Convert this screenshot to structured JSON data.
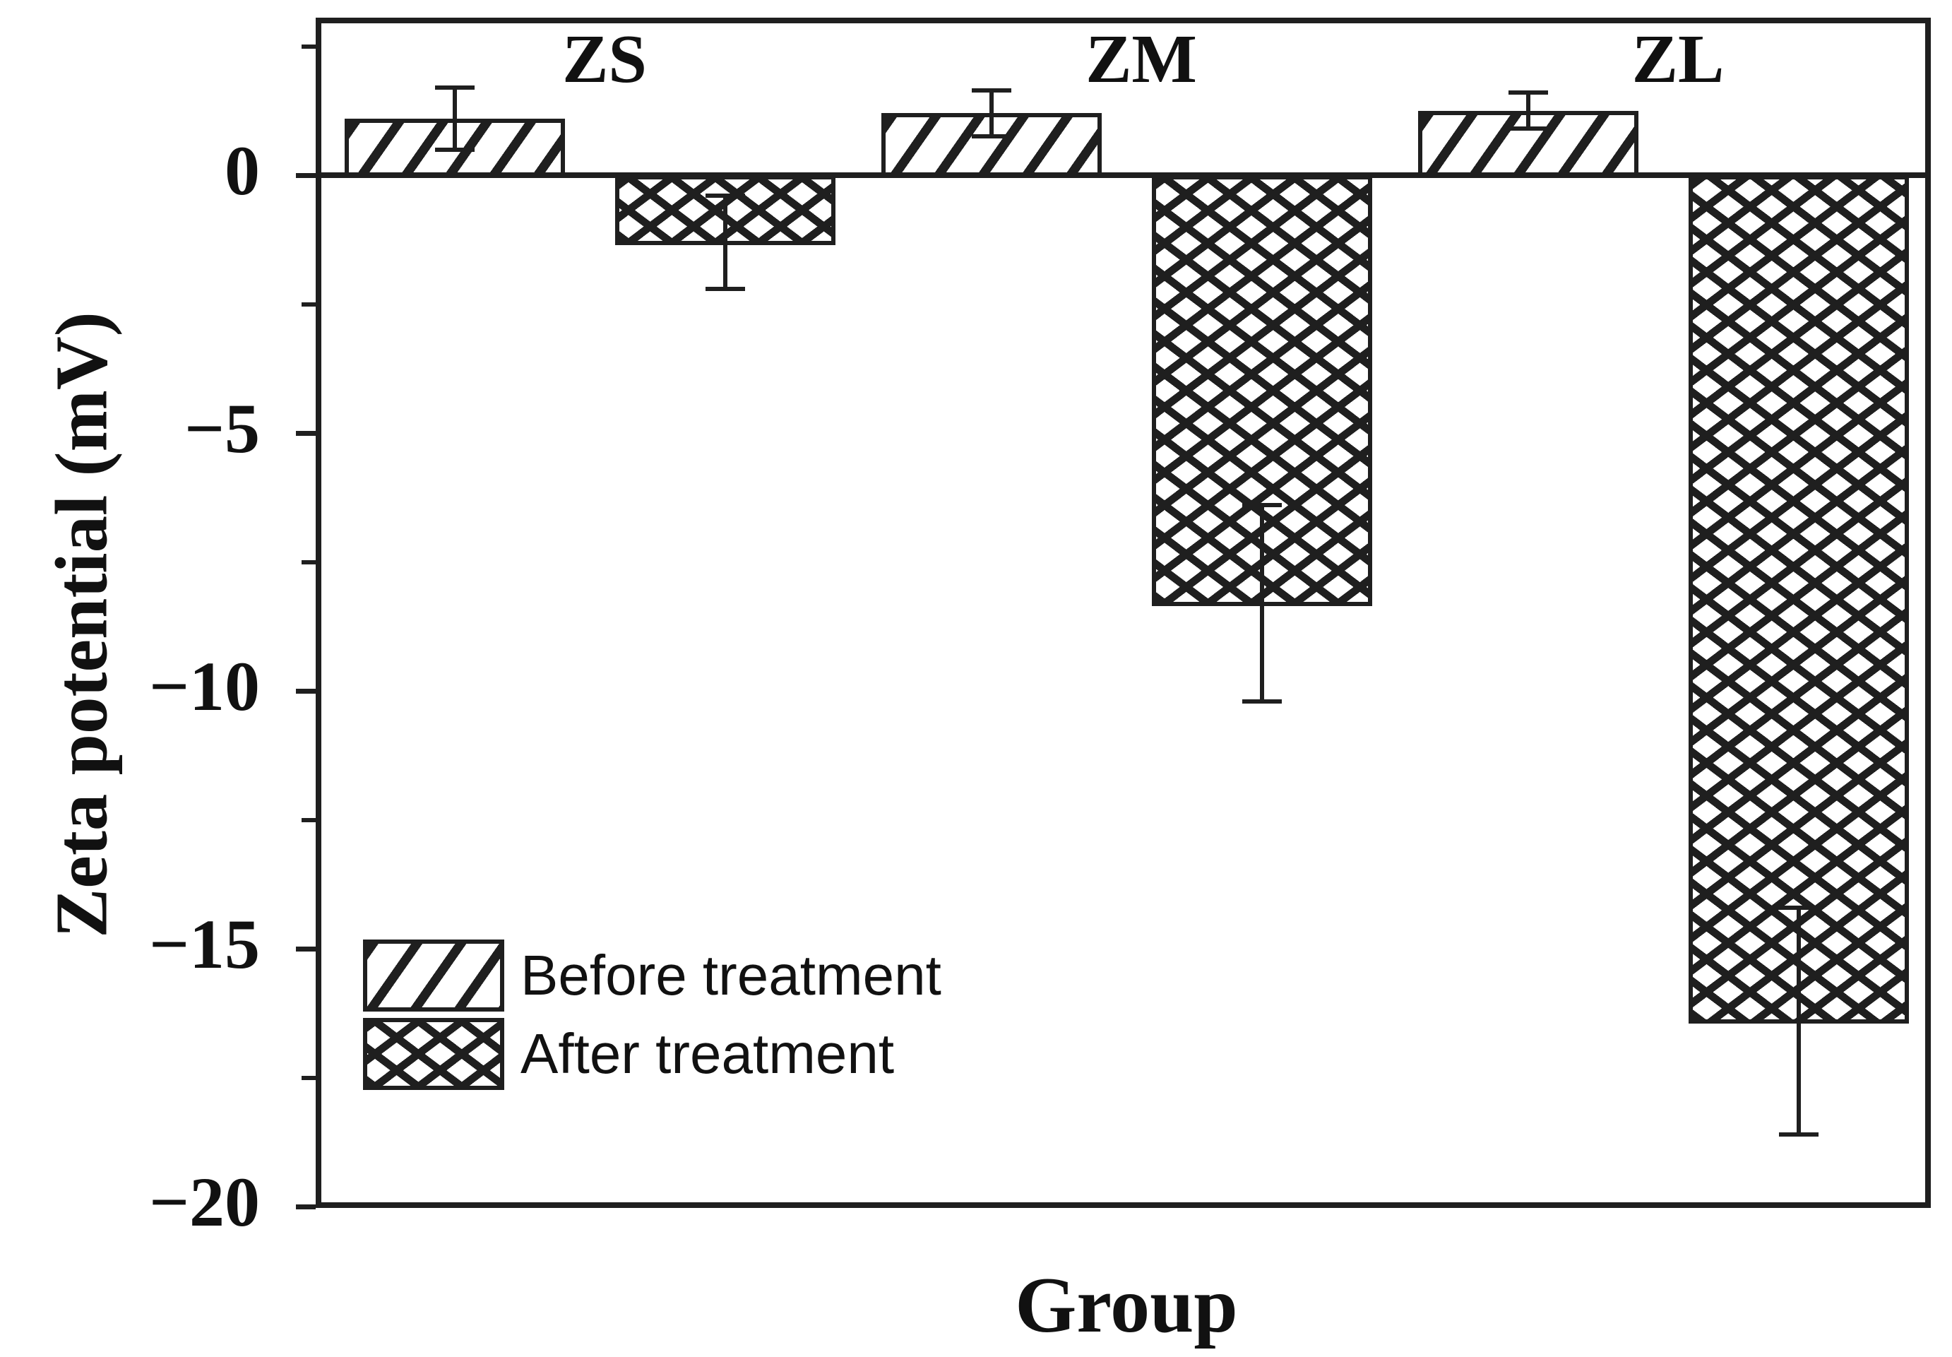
{
  "figure": {
    "xlabel": "Group",
    "ylabel": "Zeta potential (mV)"
  },
  "legend": {
    "items": [
      "Before treatment",
      "After treatment"
    ]
  },
  "chart_data": {
    "type": "bar",
    "title": "",
    "xlabel": "Group",
    "ylabel": "Zeta potential (mV)",
    "categories": [
      "ZS",
      "ZM",
      "ZL"
    ],
    "series": [
      {
        "name": "Before treatment",
        "pattern": "diagonal-hatch",
        "values": [
          1.1,
          1.2,
          1.25
        ],
        "errors": [
          0.6,
          0.45,
          0.35
        ]
      },
      {
        "name": "After treatment",
        "pattern": "cross-hatch",
        "values": [
          -1.3,
          -8.3,
          -16.4
        ],
        "errors": [
          0.9,
          1.9,
          2.2
        ]
      }
    ],
    "ylim": [
      -20,
      3
    ],
    "yticks_major": [
      0,
      -5,
      -10,
      -15,
      -20
    ],
    "yticks_minor": [
      2.5,
      -2.5,
      -7.5,
      -12.5,
      -17.5
    ],
    "grid": false,
    "legend_position": "inside-lower-left",
    "colors": {
      "foreground": "#1f1f1f",
      "background": "#ffffff"
    }
  }
}
